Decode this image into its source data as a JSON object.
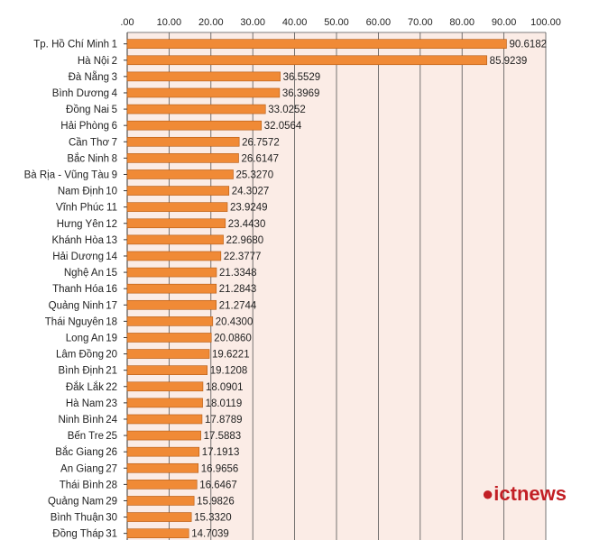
{
  "chart_data": {
    "type": "bar",
    "orientation": "horizontal",
    "title": "",
    "xlabel": "",
    "ylabel": "",
    "xlim": [
      0,
      100
    ],
    "tick_labels": [
      ".00",
      "10.00",
      "20.00",
      "30.00",
      "40.00",
      "50.00",
      "60.00",
      "70.00",
      "80.00",
      "90.00",
      "100.00"
    ],
    "grid": true,
    "bar_color": "#f08a36",
    "bar_edge": "#b45a12",
    "plot_bg": "#fbece6",
    "categories": [
      {
        "name": "Tp. Hồ Chí Minh",
        "rank": "1",
        "value": 90.6182,
        "label": "90.6182"
      },
      {
        "name": "Hà Nội",
        "rank": "2",
        "value": 85.9239,
        "label": "85.9239"
      },
      {
        "name": "Đà Nẵng",
        "rank": "3",
        "value": 36.5529,
        "label": "36.5529"
      },
      {
        "name": "Bình Dương",
        "rank": "4",
        "value": 36.3969,
        "label": "36.3969"
      },
      {
        "name": "Đồng Nai",
        "rank": "5",
        "value": 33.0252,
        "label": "33.0252"
      },
      {
        "name": "Hải Phòng",
        "rank": "6",
        "value": 32.0564,
        "label": "32.0564"
      },
      {
        "name": "Cần Thơ",
        "rank": "7",
        "value": 26.7572,
        "label": "26.7572"
      },
      {
        "name": "Bắc Ninh",
        "rank": "8",
        "value": 26.6147,
        "label": "26.6147"
      },
      {
        "name": "Bà Rịa - Vũng Tàu",
        "rank": "9",
        "value": 25.327,
        "label": "25.3270"
      },
      {
        "name": "Nam Định",
        "rank": "10",
        "value": 24.3027,
        "label": "24.3027"
      },
      {
        "name": "Vĩnh Phúc",
        "rank": "11",
        "value": 23.9249,
        "label": "23.9249"
      },
      {
        "name": "Hưng Yên",
        "rank": "12",
        "value": 23.443,
        "label": "23.4430"
      },
      {
        "name": "Khánh Hòa",
        "rank": "13",
        "value": 22.968,
        "label": "22.9680"
      },
      {
        "name": "Hải Dương",
        "rank": "14",
        "value": 22.3777,
        "label": "22.3777"
      },
      {
        "name": "Nghệ An",
        "rank": "15",
        "value": 21.3348,
        "label": "21.3348"
      },
      {
        "name": "Thanh Hóa",
        "rank": "16",
        "value": 21.2843,
        "label": "21.2843"
      },
      {
        "name": "Quảng Ninh",
        "rank": "17",
        "value": 21.2744,
        "label": "21.2744"
      },
      {
        "name": "Thái Nguyên",
        "rank": "18",
        "value": 20.43,
        "label": "20.4300"
      },
      {
        "name": "Long An",
        "rank": "19",
        "value": 20.086,
        "label": "20.0860"
      },
      {
        "name": "Lâm Đồng",
        "rank": "20",
        "value": 19.6221,
        "label": "19.6221"
      },
      {
        "name": "Bình Định",
        "rank": "21",
        "value": 19.1208,
        "label": "19.1208"
      },
      {
        "name": "Đắk Lắk",
        "rank": "22",
        "value": 18.0901,
        "label": "18.0901"
      },
      {
        "name": "Hà Nam",
        "rank": "23",
        "value": 18.0119,
        "label": "18.0119"
      },
      {
        "name": "Ninh Bình",
        "rank": "24",
        "value": 17.8789,
        "label": "17.8789"
      },
      {
        "name": "Bến Tre",
        "rank": "25",
        "value": 17.5883,
        "label": "17.5883"
      },
      {
        "name": "Bắc Giang",
        "rank": "26",
        "value": 17.1913,
        "label": "17.1913"
      },
      {
        "name": "An Giang",
        "rank": "27",
        "value": 16.9656,
        "label": "16.9656"
      },
      {
        "name": "Thái Bình",
        "rank": "28",
        "value": 16.6467,
        "label": "16.6467"
      },
      {
        "name": "Quảng Nam",
        "rank": "29",
        "value": 15.9826,
        "label": "15.9826"
      },
      {
        "name": "Bình Thuận",
        "rank": "30",
        "value": 15.332,
        "label": "15.3320"
      },
      {
        "name": "Đồng Tháp",
        "rank": "31",
        "value": 14.7039,
        "label": "14.7039"
      }
    ]
  },
  "watermark": {
    "text": "ictnews",
    "color": "#c21f25"
  }
}
